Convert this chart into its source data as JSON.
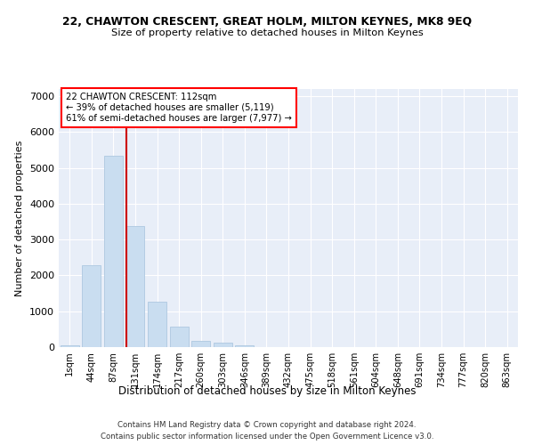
{
  "title1": "22, CHAWTON CRESCENT, GREAT HOLM, MILTON KEYNES, MK8 9EQ",
  "title2": "Size of property relative to detached houses in Milton Keynes",
  "xlabel": "Distribution of detached houses by size in Milton Keynes",
  "ylabel": "Number of detached properties",
  "footnote1": "Contains HM Land Registry data © Crown copyright and database right 2024.",
  "footnote2": "Contains public sector information licensed under the Open Government Licence v3.0.",
  "annotation_line1": "22 CHAWTON CRESCENT: 112sqm",
  "annotation_line2": "← 39% of detached houses are smaller (5,119)",
  "annotation_line3": "61% of semi-detached houses are larger (7,977) →",
  "bar_color": "#c9ddf0",
  "bar_edge_color": "#adc8e0",
  "vline_color": "#cc0000",
  "background_color": "#e8eef8",
  "categories": [
    "1sqm",
    "44sqm",
    "87sqm",
    "131sqm",
    "174sqm",
    "217sqm",
    "260sqm",
    "303sqm",
    "346sqm",
    "389sqm",
    "432sqm",
    "475sqm",
    "518sqm",
    "561sqm",
    "604sqm",
    "648sqm",
    "691sqm",
    "734sqm",
    "777sqm",
    "820sqm",
    "863sqm"
  ],
  "values": [
    55,
    2280,
    5350,
    3380,
    1270,
    570,
    180,
    115,
    60,
    10,
    3,
    1,
    0,
    0,
    0,
    0,
    0,
    0,
    0,
    0,
    0
  ],
  "ylim": [
    0,
    7200
  ],
  "yticks": [
    0,
    1000,
    2000,
    3000,
    4000,
    5000,
    6000,
    7000
  ],
  "vline_x": 2.58,
  "figsize": [
    6.0,
    5.0
  ],
  "dpi": 100
}
